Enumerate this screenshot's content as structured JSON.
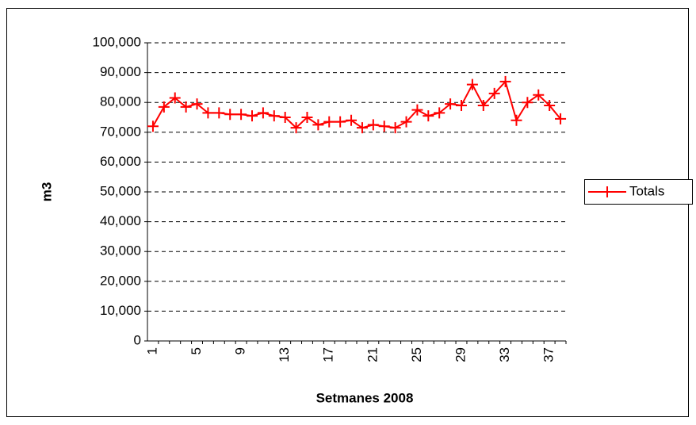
{
  "chart_data": {
    "type": "line",
    "x_label": "Setmanes 2008",
    "y_label": "m3",
    "categories": [
      "1",
      null,
      null,
      null,
      "5",
      null,
      null,
      null,
      "9",
      null,
      null,
      null,
      "13",
      null,
      null,
      null,
      "17",
      null,
      null,
      null,
      "21",
      null,
      null,
      null,
      "25",
      null,
      null,
      null,
      "29",
      null,
      null,
      null,
      "33",
      null,
      null,
      null,
      "37",
      null
    ],
    "series": [
      {
        "name": "Totals",
        "color": "#ff0000",
        "values": [
          72000,
          78500,
          81500,
          78500,
          79500,
          76500,
          76500,
          76000,
          76000,
          75500,
          76500,
          75500,
          75000,
          71500,
          75000,
          72500,
          73500,
          73500,
          74000,
          71500,
          72500,
          72000,
          71500,
          73500,
          77500,
          75500,
          76500,
          79500,
          79000,
          86000,
          79000,
          83000,
          87000,
          74000,
          80000,
          82500,
          79000,
          74500
        ]
      }
    ],
    "ylim": [
      0,
      100000
    ],
    "yticks": [
      0,
      {
        "value": 10000,
        "label": "10,000"
      },
      {
        "value": 20000,
        "label": "20,000"
      },
      {
        "value": 30000,
        "label": "30,000"
      },
      {
        "value": 40000,
        "label": "40,000"
      },
      {
        "value": 50000,
        "label": "50,000"
      },
      {
        "value": 60000,
        "label": "60,000"
      },
      {
        "value": 70000,
        "label": "70,000"
      },
      {
        "value": 80000,
        "label": "80,000"
      },
      {
        "value": 90000,
        "label": "90,000"
      },
      {
        "value": 100000,
        "label": "100,000"
      }
    ],
    "grid": true,
    "legend": "right"
  }
}
